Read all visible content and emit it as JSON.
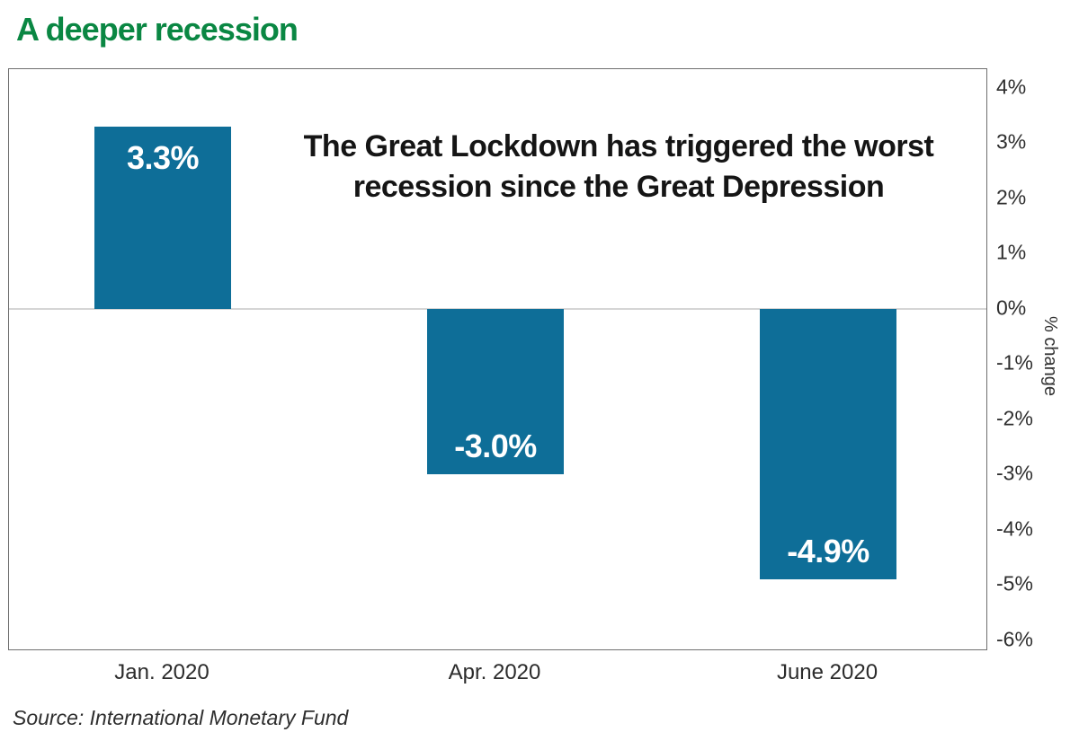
{
  "colors": {
    "bar_fill": "#0e6e98",
    "title_green": "#0a8743",
    "value_label_text": "#ffffff",
    "zero_gridline": "#d5d5d5",
    "plot_border": "#6f6f6f"
  },
  "chart_data": {
    "type": "bar",
    "title": "A deeper recession",
    "categories": [
      "Jan. 2020",
      "Apr. 2020",
      "June 2020"
    ],
    "values": [
      3.3,
      -3.0,
      -4.9
    ],
    "bar_labels": [
      "3.3%",
      "-3.0%",
      "-4.9%"
    ],
    "annotation_lines": [
      "The Great Lockdown has triggered the worst",
      "recession since the Great Depression"
    ],
    "ylabel": "% change",
    "xlabel": "",
    "y_tick_labels": [
      "4%",
      "3%",
      "2%",
      "1%",
      "0%",
      "-1%",
      "-2%",
      "-3%",
      "-4%",
      "-5%",
      "-6%"
    ],
    "y_tick_values": [
      4,
      3,
      2,
      1,
      0,
      -1,
      -2,
      -3,
      -4,
      -5,
      -6
    ],
    "ylim": [
      -6.2,
      4.34
    ],
    "grid": "zero-line-only",
    "legend": "none",
    "source": "Source: International Monetary Fund"
  }
}
